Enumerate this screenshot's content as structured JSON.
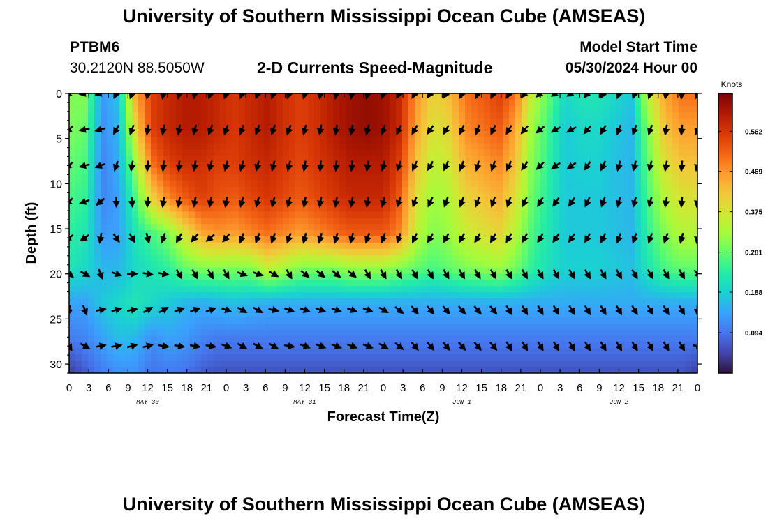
{
  "header": {
    "title": "University of Southern Mississippi Ocean Cube (AMSEAS)",
    "station_id": "PTBM6",
    "station_coords": "30.2120N  88.5050W",
    "plot_title": "2-D Currents Speed-Magnitude",
    "model_start_label": "Model Start Time",
    "model_start_value": "05/30/2024 Hour 00"
  },
  "footer": {
    "title": "University of Southern Mississippi Ocean Cube (AMSEAS)"
  },
  "colors": {
    "colormap": [
      "#30123b",
      "#4145ab",
      "#4675ed",
      "#39a2fc",
      "#1bcfd4",
      "#24eca6",
      "#61fc6c",
      "#a4fc3b",
      "#d1e834",
      "#f3c63a",
      "#fe9b2d",
      "#f36315",
      "#d93806",
      "#b11901",
      "#7a0403"
    ]
  },
  "chart_data": {
    "type": "heatmap",
    "xlabel": "Forecast Time(Z)",
    "ylabel": "Depth (ft)",
    "x_range_hours": [
      0,
      96
    ],
    "ylim": [
      0,
      31
    ],
    "x_tick_hours": [
      0,
      3,
      6,
      9,
      12,
      15,
      18,
      21,
      24,
      27,
      30,
      33,
      36,
      39,
      42,
      45,
      48,
      51,
      54,
      57,
      60,
      63,
      66,
      69,
      72,
      75,
      78,
      81,
      84,
      87,
      90,
      93,
      96
    ],
    "x_tick_labels": [
      "0",
      "3",
      "6",
      "9",
      "12",
      "15",
      "18",
      "21",
      "0",
      "3",
      "6",
      "9",
      "12",
      "15",
      "18",
      "21",
      "0",
      "3",
      "6",
      "9",
      "12",
      "15",
      "18",
      "21",
      "0",
      "3",
      "6",
      "9",
      "12",
      "15",
      "18",
      "21",
      "0"
    ],
    "date_labels": [
      {
        "hour": 12,
        "label": "MAY 30"
      },
      {
        "hour": 36,
        "label": "MAY 31"
      },
      {
        "hour": 60,
        "label": "JUN 1"
      },
      {
        "hour": 84,
        "label": "JUN 2"
      }
    ],
    "y_ticks": [
      0,
      5,
      10,
      15,
      20,
      25,
      30
    ],
    "colorbar": {
      "title": "Knots",
      "range": [
        0,
        0.65
      ],
      "ticks": [
        0.094,
        0.188,
        0.281,
        0.375,
        0.469,
        0.562
      ]
    },
    "vector_depths_ft": [
      0,
      4,
      8,
      12,
      16,
      20,
      24,
      28
    ],
    "vector_hours_step": 3,
    "speed_rows_knots": [
      [
        0.3,
        0.3,
        0.13,
        0.18,
        0.45,
        0.55,
        0.58,
        0.6,
        0.6,
        0.58,
        0.56,
        0.58,
        0.6,
        0.57,
        0.55,
        0.57,
        0.6,
        0.62,
        0.63,
        0.62,
        0.58,
        0.47,
        0.4,
        0.43,
        0.5,
        0.52,
        0.55,
        0.5,
        0.35,
        0.28,
        0.2,
        0.22,
        0.22,
        0.2,
        0.18,
        0.35,
        0.45,
        0.5,
        0.5
      ],
      [
        0.3,
        0.28,
        0.12,
        0.16,
        0.4,
        0.55,
        0.58,
        0.6,
        0.6,
        0.58,
        0.56,
        0.58,
        0.6,
        0.57,
        0.55,
        0.57,
        0.6,
        0.62,
        0.63,
        0.62,
        0.58,
        0.45,
        0.38,
        0.4,
        0.48,
        0.5,
        0.52,
        0.45,
        0.32,
        0.25,
        0.18,
        0.2,
        0.2,
        0.18,
        0.16,
        0.3,
        0.42,
        0.46,
        0.46
      ],
      [
        0.28,
        0.26,
        0.11,
        0.15,
        0.32,
        0.5,
        0.55,
        0.57,
        0.57,
        0.55,
        0.55,
        0.57,
        0.58,
        0.56,
        0.54,
        0.56,
        0.58,
        0.6,
        0.6,
        0.6,
        0.55,
        0.42,
        0.35,
        0.37,
        0.44,
        0.46,
        0.48,
        0.42,
        0.3,
        0.24,
        0.18,
        0.19,
        0.19,
        0.17,
        0.16,
        0.28,
        0.38,
        0.42,
        0.42
      ],
      [
        0.26,
        0.24,
        0.11,
        0.14,
        0.26,
        0.4,
        0.48,
        0.52,
        0.55,
        0.53,
        0.52,
        0.54,
        0.56,
        0.54,
        0.52,
        0.54,
        0.56,
        0.58,
        0.58,
        0.58,
        0.52,
        0.38,
        0.32,
        0.34,
        0.4,
        0.42,
        0.44,
        0.38,
        0.28,
        0.23,
        0.18,
        0.18,
        0.18,
        0.17,
        0.16,
        0.26,
        0.34,
        0.38,
        0.38
      ],
      [
        0.24,
        0.22,
        0.13,
        0.14,
        0.22,
        0.26,
        0.3,
        0.38,
        0.45,
        0.47,
        0.46,
        0.48,
        0.5,
        0.48,
        0.46,
        0.48,
        0.5,
        0.52,
        0.52,
        0.52,
        0.48,
        0.35,
        0.3,
        0.32,
        0.36,
        0.38,
        0.4,
        0.34,
        0.26,
        0.22,
        0.18,
        0.18,
        0.18,
        0.17,
        0.16,
        0.24,
        0.3,
        0.34,
        0.34
      ],
      [
        0.22,
        0.2,
        0.16,
        0.16,
        0.2,
        0.22,
        0.24,
        0.28,
        0.3,
        0.3,
        0.3,
        0.3,
        0.36,
        0.33,
        0.3,
        0.3,
        0.3,
        0.32,
        0.32,
        0.32,
        0.3,
        0.28,
        0.26,
        0.28,
        0.3,
        0.31,
        0.32,
        0.29,
        0.24,
        0.21,
        0.19,
        0.19,
        0.19,
        0.18,
        0.17,
        0.22,
        0.26,
        0.28,
        0.28
      ],
      [
        0.14,
        0.14,
        0.18,
        0.2,
        0.22,
        0.2,
        0.18,
        0.16,
        0.15,
        0.16,
        0.17,
        0.16,
        0.15,
        0.15,
        0.15,
        0.15,
        0.15,
        0.15,
        0.15,
        0.15,
        0.15,
        0.15,
        0.15,
        0.15,
        0.15,
        0.15,
        0.15,
        0.15,
        0.15,
        0.15,
        0.15,
        0.15,
        0.15,
        0.15,
        0.15,
        0.15,
        0.15,
        0.15,
        0.15
      ],
      [
        0.1,
        0.11,
        0.14,
        0.17,
        0.16,
        0.12,
        0.14,
        0.13,
        0.11,
        0.1,
        0.1,
        0.1,
        0.1,
        0.1,
        0.1,
        0.1,
        0.1,
        0.1,
        0.1,
        0.1,
        0.1,
        0.1,
        0.1,
        0.1,
        0.1,
        0.1,
        0.1,
        0.1,
        0.1,
        0.1,
        0.1,
        0.1,
        0.1,
        0.1,
        0.1,
        0.1,
        0.1,
        0.1,
        0.1
      ],
      [
        0.04,
        0.07,
        0.1,
        0.12,
        0.12,
        0.09,
        0.1,
        0.09,
        0.07,
        0.06,
        0.06,
        0.06,
        0.06,
        0.06,
        0.06,
        0.06,
        0.06,
        0.06,
        0.06,
        0.06,
        0.06,
        0.06,
        0.06,
        0.06,
        0.06,
        0.06,
        0.06,
        0.06,
        0.06,
        0.06,
        0.06,
        0.06,
        0.06,
        0.06,
        0.06,
        0.06,
        0.06,
        0.06,
        0.04
      ]
    ],
    "arrow_rows_deg": [
      [
        225,
        260,
        255,
        205,
        200,
        190,
        190,
        190,
        195,
        200,
        200,
        200,
        200,
        200,
        200,
        195,
        190,
        190,
        190,
        195,
        200,
        205,
        210,
        215,
        210,
        205,
        200,
        205,
        210,
        220,
        230,
        240,
        240,
        220,
        210,
        200,
        200,
        200,
        190,
        185,
        200
      ],
      [
        225,
        260,
        255,
        210,
        200,
        190,
        190,
        190,
        195,
        200,
        200,
        200,
        200,
        200,
        200,
        195,
        190,
        190,
        190,
        195,
        200,
        205,
        210,
        215,
        210,
        205,
        200,
        205,
        210,
        220,
        230,
        240,
        240,
        220,
        210,
        200,
        200,
        200,
        190,
        185,
        200
      ],
      [
        225,
        255,
        250,
        200,
        190,
        185,
        185,
        185,
        190,
        195,
        195,
        195,
        195,
        195,
        195,
        190,
        185,
        185,
        185,
        190,
        195,
        200,
        205,
        210,
        205,
        200,
        195,
        200,
        205,
        215,
        225,
        235,
        235,
        215,
        205,
        195,
        195,
        195,
        190,
        185,
        195
      ],
      [
        225,
        250,
        230,
        180,
        175,
        185,
        190,
        190,
        190,
        190,
        190,
        195,
        195,
        195,
        195,
        190,
        190,
        190,
        190,
        190,
        195,
        200,
        200,
        205,
        200,
        200,
        200,
        200,
        200,
        205,
        210,
        215,
        215,
        205,
        200,
        195,
        195,
        195,
        190,
        185,
        190
      ],
      [
        235,
        235,
        190,
        145,
        150,
        165,
        200,
        210,
        220,
        230,
        220,
        200,
        200,
        200,
        200,
        195,
        195,
        195,
        195,
        200,
        200,
        200,
        205,
        210,
        210,
        210,
        210,
        210,
        210,
        210,
        210,
        215,
        215,
        210,
        205,
        200,
        200,
        200,
        200,
        195,
        190
      ],
      [
        130,
        120,
        160,
        110,
        90,
        100,
        100,
        150,
        150,
        150,
        150,
        110,
        110,
        120,
        150,
        130,
        130,
        130,
        130,
        150,
        150,
        150,
        150,
        150,
        150,
        150,
        150,
        150,
        150,
        150,
        150,
        150,
        150,
        150,
        150,
        150,
        150,
        150,
        150,
        150,
        140
      ],
      [
        190,
        160,
        80,
        75,
        80,
        60,
        60,
        70,
        70,
        70,
        110,
        120,
        120,
        100,
        110,
        110,
        110,
        110,
        110,
        110,
        120,
        130,
        140,
        140,
        140,
        140,
        140,
        140,
        150,
        150,
        150,
        150,
        150,
        150,
        150,
        150,
        150,
        150,
        150,
        150,
        180
      ],
      [
        150,
        120,
        80,
        80,
        75,
        75,
        100,
        100,
        100,
        100,
        110,
        120,
        120,
        120,
        100,
        110,
        110,
        110,
        110,
        110,
        120,
        130,
        140,
        140,
        140,
        140,
        140,
        140,
        150,
        150,
        150,
        150,
        150,
        150,
        150,
        150,
        150,
        150,
        150,
        150,
        100
      ]
    ]
  }
}
